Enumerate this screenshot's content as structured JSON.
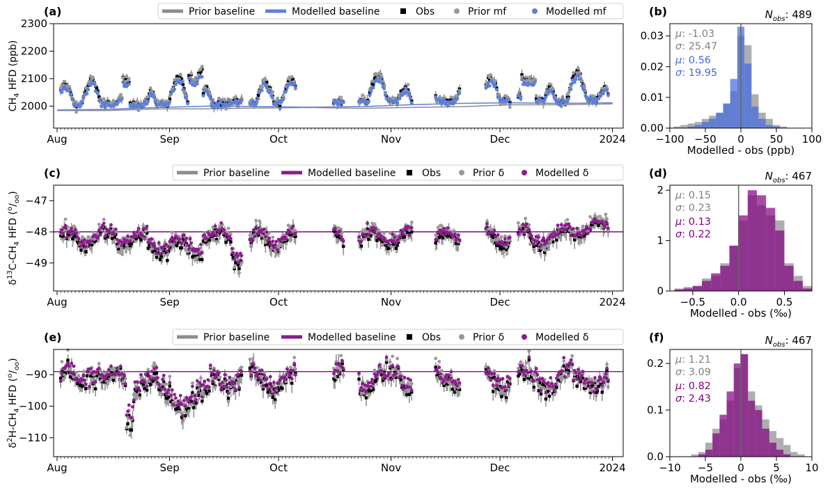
{
  "months": [
    "Aug",
    "Sep",
    "Oct",
    "Nov",
    "Dec",
    "2024"
  ],
  "colors": {
    "obs": "#000000",
    "prior": "#999999",
    "prior_line": "#8c8c8c",
    "modelled_a": "#5b7fdc",
    "modelled_ce": "#8b1c8c",
    "err": "#7f7f7f"
  },
  "chart_data": [
    {
      "id": "a",
      "type": "scatter",
      "panel_label": "(a)",
      "ylabel": "CH4 HFD (ppb)",
      "ylim": [
        1920,
        2300
      ],
      "yticks": [
        2000,
        2100,
        2200,
        2300
      ],
      "legend": [
        "Prior baseline",
        "Modelled baseline",
        "Obs",
        "Prior mf",
        "Modelled mf"
      ],
      "series": [
        {
          "name": "Prior baseline",
          "y": [
            1984,
            1984,
            1990,
            1990,
            1993,
            1995,
            1992,
            1995,
            1998,
            2005,
            2005,
            2008
          ]
        },
        {
          "name": "Modelled baseline",
          "y": [
            1986,
            1988,
            1995,
            2000,
            1998,
            1996,
            1998,
            2005,
            2010,
            2012,
            2010,
            2012
          ]
        }
      ]
    },
    {
      "id": "b",
      "type": "bar",
      "panel_label": "(b)",
      "n_label": "N_obs: 489",
      "xlabel": "Modelled - obs (ppb)",
      "xlim": [
        -100,
        100
      ],
      "ylim": [
        0,
        0.034
      ],
      "xticks": [
        -100,
        -50,
        0,
        50,
        100
      ],
      "yticks": [
        0.0,
        0.01,
        0.02,
        0.03
      ],
      "stats": [
        {
          "mu": "-1.03",
          "sigma": "25.47",
          "color": "#808080"
        },
        {
          "mu": "0.56",
          "sigma": "19.95",
          "color": "#4169e1"
        }
      ],
      "bin_edges": [
        -95,
        -85,
        -75,
        -65,
        -55,
        -45,
        -35,
        -25,
        -15,
        -5,
        5,
        15,
        25,
        35,
        45,
        55,
        65
      ],
      "series": [
        {
          "name": "Prior",
          "values": [
            0.0005,
            0.001,
            0.0015,
            0.002,
            0.003,
            0.004,
            0.005,
            0.008,
            0.012,
            0.03,
            0.027,
            0.011,
            0.005,
            0.003,
            0.001,
            0.0005
          ]
        },
        {
          "name": "Modelled",
          "values": [
            0.0,
            0.0,
            0.0005,
            0.001,
            0.002,
            0.003,
            0.005,
            0.008,
            0.016,
            0.033,
            0.021,
            0.007,
            0.003,
            0.001,
            0.0005,
            0.0
          ]
        }
      ]
    },
    {
      "id": "c",
      "type": "scatter",
      "panel_label": "(c)",
      "ylabel": "δ13C-CH4 HFD (‰)",
      "ylim": [
        -49.9,
        -46.5
      ],
      "yticks": [
        -49,
        -48,
        -47
      ],
      "legend": [
        "Prior baseline",
        "Modelled baseline",
        "Obs",
        "Prior δ",
        "Modelled δ"
      ],
      "baseline": -48.0
    },
    {
      "id": "d",
      "type": "bar",
      "panel_label": "(d)",
      "n_label": "N_obs: 467",
      "xlabel": "Modelled - obs (‰)",
      "xlim": [
        -0.75,
        0.8
      ],
      "ylim": [
        0,
        2.1
      ],
      "xticks": [
        -0.5,
        0.0,
        0.5
      ],
      "yticks": [
        0,
        1,
        2
      ],
      "stats": [
        {
          "mu": "0.15",
          "sigma": "0.23",
          "color": "#808080"
        },
        {
          "mu": "0.13",
          "sigma": "0.22",
          "color": "#800080"
        }
      ],
      "bin_edges": [
        -0.7,
        -0.6,
        -0.5,
        -0.4,
        -0.3,
        -0.2,
        -0.1,
        0.0,
        0.1,
        0.2,
        0.3,
        0.4,
        0.5,
        0.6,
        0.7,
        0.8
      ],
      "series": [
        {
          "name": "Prior",
          "values": [
            0.05,
            0.08,
            0.1,
            0.25,
            0.3,
            0.55,
            0.9,
            1.4,
            1.9,
            1.7,
            1.5,
            1.4,
            0.55,
            0.3,
            0.1
          ]
        },
        {
          "name": "Modelled",
          "values": [
            0.03,
            0.05,
            0.1,
            0.2,
            0.35,
            0.5,
            0.9,
            1.5,
            2.0,
            1.9,
            1.65,
            1.2,
            0.5,
            0.2,
            0.05
          ]
        }
      ]
    },
    {
      "id": "e",
      "type": "scatter",
      "panel_label": "(e)",
      "ylabel": "δ2H-CH4 HFD (‰)",
      "ylim": [
        -116,
        -82
      ],
      "yticks": [
        -110,
        -100,
        -90
      ],
      "legend": [
        "Prior baseline",
        "Modelled baseline",
        "Obs",
        "Prior δ",
        "Modelled δ"
      ],
      "baseline": -89
    },
    {
      "id": "f",
      "type": "bar",
      "panel_label": "(f)",
      "n_label": "N_obs: 467",
      "xlabel": "Modelled - obs (‰)",
      "xlim": [
        -10,
        10
      ],
      "ylim": [
        0,
        0.23
      ],
      "xticks": [
        -10,
        -5,
        0,
        5,
        10
      ],
      "yticks": [
        0.0,
        0.1,
        0.2
      ],
      "stats": [
        {
          "mu": "1.21",
          "sigma": "3.09",
          "color": "#808080"
        },
        {
          "mu": "0.82",
          "sigma": "2.43",
          "color": "#800080"
        }
      ],
      "bin_edges": [
        -9,
        -8,
        -7,
        -6,
        -5,
        -4,
        -3,
        -2,
        -1,
        0,
        1,
        2,
        3,
        4,
        5,
        6,
        7,
        8,
        9
      ],
      "series": [
        {
          "name": "Prior",
          "values": [
            0.0,
            0.0,
            0.005,
            0.01,
            0.03,
            0.06,
            0.08,
            0.12,
            0.19,
            0.22,
            0.14,
            0.11,
            0.08,
            0.055,
            0.04,
            0.025,
            0.01,
            0.005
          ]
        },
        {
          "name": "Modelled",
          "values": [
            0.0,
            0.0,
            0.0,
            0.005,
            0.015,
            0.05,
            0.09,
            0.14,
            0.2,
            0.22,
            0.12,
            0.1,
            0.06,
            0.03,
            0.015,
            0.005,
            0.0,
            0.0
          ]
        }
      ]
    }
  ]
}
